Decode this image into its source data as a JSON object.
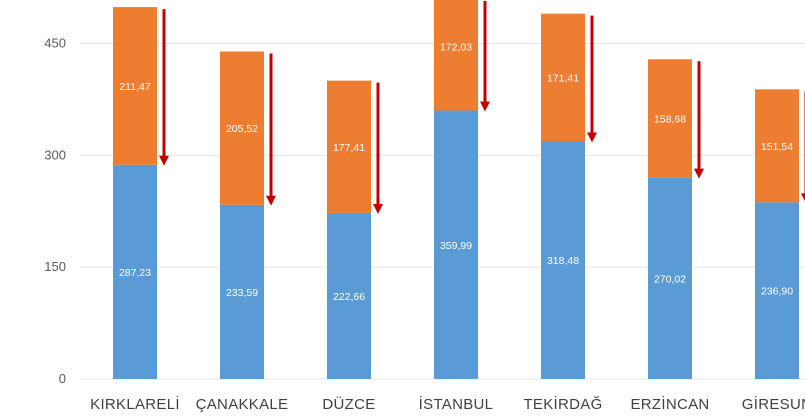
{
  "chart_data": {
    "type": "bar",
    "stacked": true,
    "categories": [
      "KIRKLARELİ",
      "ÇANAKKALE",
      "DÜZCE",
      "İSTANBUL",
      "TEKİRDAĞ",
      "ERZİNCAN",
      "GİRESUN"
    ],
    "series": [
      {
        "values": [
          287.23,
          233.59,
          222.66,
          359.99,
          318.48,
          270.02,
          236.9
        ],
        "labels": [
          "287,23",
          "233,59",
          "222,66",
          "359,99",
          "318,48",
          "270,02",
          "236,90"
        ],
        "color": "#5b9bd5"
      },
      {
        "values": [
          211.47,
          205.52,
          177.41,
          172.03,
          171.41,
          158.68,
          151.54
        ],
        "labels": [
          "211,47",
          "205,52",
          "177,41",
          "172,03",
          "171,41",
          "158,68",
          "151,54"
        ],
        "color": "#ed7d31"
      }
    ],
    "arrow_color": "#c00000",
    "yticks": [
      0,
      150,
      300,
      450
    ],
    "ylim": [
      0,
      510
    ],
    "grid": true,
    "title": "",
    "xlabel": "",
    "ylabel": ""
  }
}
